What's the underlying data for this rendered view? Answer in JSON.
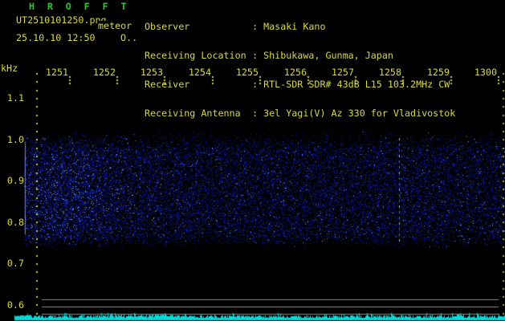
{
  "title": {
    "text": "H R O F F T"
  },
  "stamp": {
    "filename": "UT2510101250.png",
    "station": "meteor",
    "datetime": "25.10.10 12:50",
    "counter": "O.."
  },
  "info": {
    "separator": ": ",
    "rows": [
      {
        "label": "Observer",
        "value": "Masaki Kano"
      },
      {
        "label": "Receiving Location",
        "value": "Shibukawa, Gunma, Japan"
      },
      {
        "label": "Receiver",
        "value": "RTL-SDR SDR# 43dB L15 103.2MHz CW"
      },
      {
        "label": "Receiving Antenna",
        "value": "3el Yagi(V) Az 330 for Vladivostok"
      }
    ]
  },
  "freq_axis": {
    "unit": "kHz",
    "labels": [
      "1.1",
      "1.0",
      "0.9",
      "0.8",
      "0.7",
      "0.6"
    ]
  },
  "time_axis": {
    "labels": [
      "1251",
      "1252",
      "1253",
      "1254",
      "1255",
      "1256",
      "1257",
      "1258",
      "1259",
      "1300"
    ]
  },
  "colors": {
    "text_yellow": "#d9d93a",
    "title_green": "#28c828",
    "grid_gray": "#8a8a8a",
    "trace_cyan": "#00d9d9",
    "noise_blue": "#0000c8",
    "background": "#000000"
  }
}
